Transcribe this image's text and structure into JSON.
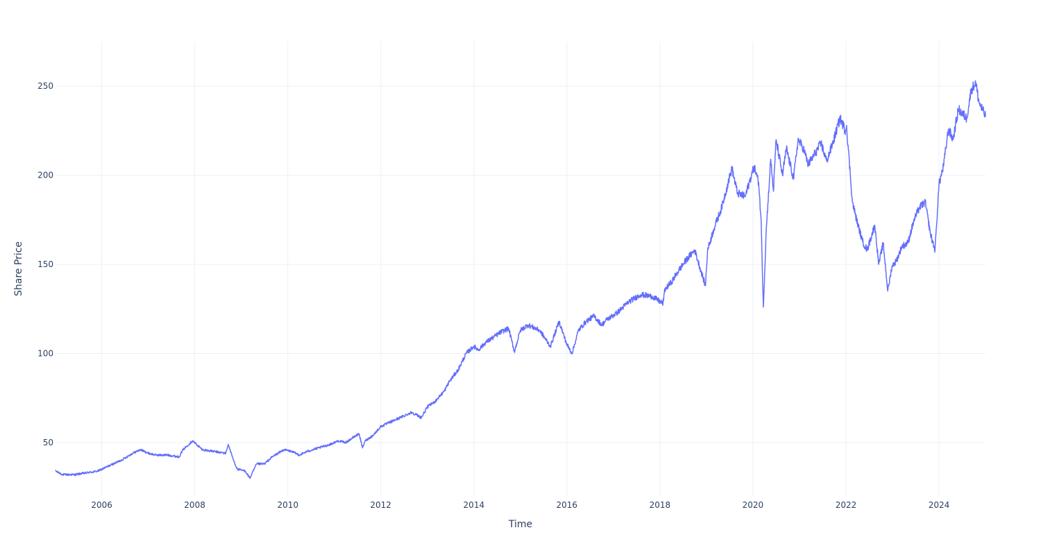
{
  "chart_data": {
    "type": "line",
    "xlabel": "Time",
    "ylabel": "Share Price",
    "xlim": [
      "2005-01-03",
      "2024-12-31"
    ],
    "ylim": [
      20,
      275
    ],
    "x_ticks": [
      "2006",
      "2008",
      "2010",
      "2012",
      "2014",
      "2016",
      "2018",
      "2020",
      "2022",
      "2024"
    ],
    "y_ticks": [
      50,
      100,
      150,
      200,
      250
    ],
    "grid": true,
    "legend": "none",
    "line_color": "#636efa",
    "series": [
      {
        "x": [
          "2005-01-03",
          "2005-03-01",
          "2005-06-01",
          "2005-09-01",
          "2005-12-01",
          "2006-01-01",
          "2006-03-01",
          "2006-06-01",
          "2006-09-01",
          "2006-11-01",
          "2007-01-01",
          "2007-03-01",
          "2007-06-01",
          "2007-09-01",
          "2007-10-01",
          "2007-12-15",
          "2008-03-01",
          "2008-06-01",
          "2008-09-01",
          "2008-09-20",
          "2008-11-01",
          "2008-12-01",
          "2009-02-01",
          "2009-03-09",
          "2009-05-01",
          "2009-07-01",
          "2009-09-01",
          "2009-12-01",
          "2010-02-01",
          "2010-04-01",
          "2010-06-01",
          "2010-09-01",
          "2010-12-01",
          "2011-02-01",
          "2011-04-01",
          "2011-06-01",
          "2011-07-15",
          "2011-08-10",
          "2011-09-01",
          "2011-11-01",
          "2012-01-01",
          "2012-03-01",
          "2012-06-01",
          "2012-09-01",
          "2012-11-15",
          "2013-01-01",
          "2013-03-01",
          "2013-05-15",
          "2013-06-20",
          "2013-09-01",
          "2013-11-01",
          "2014-01-01",
          "2014-02-05",
          "2014-04-01",
          "2014-06-01",
          "2014-08-01",
          "2014-10-01",
          "2014-11-15",
          "2015-01-01",
          "2015-03-01",
          "2015-06-01",
          "2015-08-25",
          "2015-11-01",
          "2016-01-01",
          "2016-02-11",
          "2016-04-01",
          "2016-06-01",
          "2016-08-01",
          "2016-10-01",
          "2016-11-10",
          "2017-02-01",
          "2017-05-01",
          "2017-08-01",
          "2017-11-01",
          "2018-01-25",
          "2018-02-09",
          "2018-04-01",
          "2018-06-01",
          "2018-08-01",
          "2018-10-01",
          "2018-12-24",
          "2019-01-10",
          "2019-03-01",
          "2019-05-01",
          "2019-07-20",
          "2019-09-01",
          "2019-11-01",
          "2020-01-10",
          "2020-02-15",
          "2020-03-05",
          "2020-03-23",
          "2020-04-15",
          "2020-05-20",
          "2020-06-10",
          "2020-07-01",
          "2020-08-20",
          "2020-09-20",
          "2020-11-15",
          "2020-12-20",
          "2021-02-01",
          "2021-03-10",
          "2021-05-01",
          "2021-06-20",
          "2021-08-01",
          "2021-09-15",
          "2021-11-15",
          "2021-12-28",
          "2022-01-05",
          "2022-02-20",
          "2022-03-25",
          "2022-05-10",
          "2022-06-15",
          "2022-08-15",
          "2022-09-15",
          "2022-10-20",
          "2022-11-25",
          "2022-12-28",
          "2023-02-01",
          "2023-03-15",
          "2023-05-01",
          "2023-06-20",
          "2023-08-01",
          "2023-09-15",
          "2023-10-26",
          "2023-12-01",
          "2024-01-01",
          "2024-02-05",
          "2024-03-15",
          "2024-04-20",
          "2024-06-01",
          "2024-08-05",
          "2024-09-10",
          "2024-10-15",
          "2024-11-10",
          "2024-12-31"
        ],
        "y": [
          34,
          32,
          32,
          33,
          34,
          35,
          37,
          40,
          44,
          46,
          44,
          43,
          43,
          42,
          46,
          51,
          46,
          45,
          44,
          49,
          40,
          35,
          34,
          30,
          38,
          38,
          42,
          46,
          45,
          43,
          45,
          47,
          49,
          51,
          50,
          53,
          55,
          47,
          51,
          54,
          59,
          61,
          64,
          67,
          64,
          70,
          73,
          79,
          84,
          91,
          100,
          104,
          102,
          106,
          109,
          112,
          114,
          101,
          113,
          116,
          113,
          104,
          118,
          105,
          100,
          113,
          118,
          121,
          116,
          119,
          123,
          129,
          133,
          132,
          128,
          136,
          140,
          147,
          153,
          158,
          138,
          158,
          170,
          182,
          204,
          190,
          188,
          205,
          196,
          175,
          126,
          170,
          209,
          191,
          220,
          200,
          215,
          198,
          220,
          215,
          206,
          212,
          218,
          208,
          217,
          232,
          225,
          228,
          185,
          175,
          163,
          158,
          172,
          150,
          162,
          135,
          149,
          152,
          160,
          162,
          175,
          182,
          185,
          167,
          158,
          195,
          205,
          226,
          220,
          237,
          232,
          248,
          252,
          241,
          233
        ]
      }
    ]
  }
}
